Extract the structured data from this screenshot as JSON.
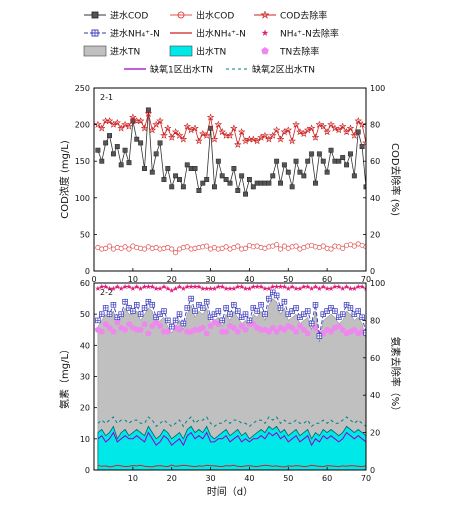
{
  "legend": [
    {
      "label": "进水COD",
      "marker": "square-line",
      "color": "#333333"
    },
    {
      "label": "出水COD",
      "marker": "circle-line",
      "color": "#e05050"
    },
    {
      "label": "COD去除率",
      "marker": "star-line",
      "color": "#cc2222"
    },
    {
      "label": "进水NH₄⁺-N",
      "marker": "boxplus-dash",
      "color": "#3333bb"
    },
    {
      "label": "出水NH₄⁺-N",
      "marker": "line",
      "color": "#cc2222"
    },
    {
      "label": "NH₄⁺-N去除率",
      "marker": "star",
      "color": "#e0207a"
    },
    {
      "label": "进水TN",
      "marker": "fill",
      "color": "#c0c0c0"
    },
    {
      "label": "出水TN",
      "marker": "fill",
      "color": "#00e8e8"
    },
    {
      "label": "TN去除率",
      "marker": "pentagon",
      "color": "#ee88ee"
    },
    {
      "label": "缺氧1区出水TN",
      "marker": "line",
      "color": "#9900cc"
    },
    {
      "label": "缺氧2区出水TN",
      "marker": "dash",
      "color": "#008080"
    }
  ],
  "colors": {
    "influent_cod": "#333333",
    "effluent_cod": "#e05050",
    "cod_removal": "#cc2222",
    "influent_nh4": "#3333bb",
    "effluent_nh4": "#cc2222",
    "nh4_removal": "#e0207a",
    "influent_tn": "#c0c0c0",
    "effluent_tn": "#00e8e8",
    "tn_removal": "#ee88ee",
    "anoxic1_tn": "#9900cc",
    "anoxic2_tn": "#008080"
  },
  "chart_data": [
    {
      "type": "line",
      "panel_label": "2-1",
      "xlabel": "",
      "ylabel": "COD浓度 (mg/L)",
      "ylabel_right": "COD去除率 (%)",
      "xlim": [
        0,
        70
      ],
      "ylim": [
        0,
        250
      ],
      "ylim_right": [
        0,
        100
      ],
      "xticks": [
        0,
        10,
        20,
        30,
        40,
        50,
        60,
        70
      ],
      "yticks": [
        0,
        50,
        100,
        150,
        200,
        250
      ],
      "yticks_right": [
        0,
        20,
        40,
        60,
        80,
        100
      ],
      "x": [
        1,
        2,
        3,
        4,
        5,
        6,
        7,
        8,
        9,
        10,
        11,
        12,
        13,
        14,
        15,
        16,
        17,
        18,
        19,
        20,
        21,
        22,
        23,
        24,
        25,
        26,
        27,
        28,
        29,
        30,
        31,
        32,
        33,
        34,
        35,
        36,
        37,
        38,
        39,
        40,
        41,
        42,
        43,
        44,
        45,
        46,
        47,
        48,
        49,
        50,
        51,
        52,
        53,
        54,
        55,
        56,
        57,
        58,
        59,
        60,
        61,
        62,
        63,
        64,
        65,
        66,
        67,
        68,
        69,
        70
      ],
      "series": [
        {
          "name": "进水COD",
          "axis": "left",
          "values": [
            165,
            150,
            175,
            185,
            160,
            170,
            145,
            165,
            148,
            205,
            180,
            175,
            140,
            220,
            135,
            160,
            175,
            125,
            140,
            115,
            130,
            125,
            115,
            145,
            140,
            140,
            110,
            120,
            125,
            195,
            115,
            150,
            130,
            125,
            120,
            140,
            110,
            130,
            105,
            125,
            115,
            120,
            120,
            120,
            120,
            130,
            150,
            120,
            145,
            135,
            115,
            150,
            135,
            130,
            150,
            160,
            120,
            160,
            150,
            135,
            165,
            150,
            150,
            155,
            145,
            160,
            130,
            190,
            170,
            115
          ]
        },
        {
          "name": "出水COD",
          "axis": "left",
          "values": [
            32,
            30,
            31,
            34,
            30,
            32,
            31,
            33,
            30,
            34,
            32,
            31,
            30,
            33,
            31,
            32,
            30,
            31,
            32,
            30,
            25,
            30,
            32,
            33,
            30,
            31,
            32,
            33,
            34,
            30,
            32,
            30,
            31,
            33,
            30,
            32,
            34,
            30,
            31,
            35,
            33,
            34,
            32,
            31,
            33,
            34,
            36,
            30,
            34,
            31,
            33,
            34,
            30,
            32,
            34,
            35,
            33,
            32,
            34,
            31,
            30,
            34,
            33,
            31,
            35,
            36,
            34,
            37,
            35,
            33
          ]
        },
        {
          "name": "COD去除率",
          "axis": "right",
          "values": [
            80,
            78,
            82,
            82,
            80,
            81,
            78,
            80,
            79,
            84,
            82,
            82,
            78,
            86,
            77,
            80,
            82,
            74,
            78,
            73,
            76,
            74,
            72,
            79,
            77,
            78,
            71,
            75,
            74,
            84,
            72,
            80,
            76,
            74,
            74,
            78,
            69,
            76,
            71,
            72,
            72,
            71,
            73,
            74,
            72,
            74,
            77,
            72,
            76,
            77,
            71,
            80,
            76,
            75,
            77,
            78,
            73,
            80,
            79,
            76,
            80,
            78,
            77,
            79,
            76,
            78,
            74,
            82,
            80,
            70
          ]
        }
      ]
    },
    {
      "type": "line",
      "panel_label": "2-2",
      "xlabel": "时间（d）",
      "ylabel": "氨素（mg/L）",
      "ylabel_right": "氨素去除率（%）",
      "xlim": [
        0,
        70
      ],
      "ylim": [
        0,
        60
      ],
      "ylim_right": [
        0,
        100
      ],
      "xticks": [
        10,
        20,
        30,
        40,
        50,
        60,
        70
      ],
      "yticks": [
        0,
        10,
        20,
        30,
        40,
        50,
        60
      ],
      "yticks_right": [
        0,
        20,
        40,
        60,
        80,
        100
      ],
      "x": [
        1,
        2,
        3,
        4,
        5,
        6,
        7,
        8,
        9,
        10,
        11,
        12,
        13,
        14,
        15,
        16,
        17,
        18,
        19,
        20,
        21,
        22,
        23,
        24,
        25,
        26,
        27,
        28,
        29,
        30,
        31,
        32,
        33,
        34,
        35,
        36,
        37,
        38,
        39,
        40,
        41,
        42,
        43,
        44,
        45,
        46,
        47,
        48,
        49,
        50,
        51,
        52,
        53,
        54,
        55,
        56,
        57,
        58,
        59,
        60,
        61,
        62,
        63,
        64,
        65,
        66,
        67,
        68,
        69,
        70
      ],
      "series": [
        {
          "name": "进水NH₄⁺-N",
          "axis": "left",
          "values": [
            48,
            50,
            52,
            50,
            53,
            49,
            50,
            54,
            52,
            51,
            53,
            50,
            52,
            54,
            53,
            49,
            50,
            51,
            48,
            46,
            48,
            50,
            47,
            52,
            55,
            51,
            53,
            52,
            54,
            49,
            50,
            51,
            48,
            52,
            50,
            53,
            51,
            49,
            50,
            48,
            52,
            51,
            53,
            50,
            55,
            57,
            56,
            52,
            54,
            50,
            51,
            52,
            49,
            50,
            51,
            47,
            53,
            43,
            50,
            51,
            52,
            51,
            49,
            50,
            53,
            52,
            50,
            51,
            49,
            44
          ]
        },
        {
          "name": "出水NH₄⁺-N",
          "axis": "left",
          "values": [
            1.5,
            1.2,
            1.3,
            1.0,
            1.2,
            1.5,
            1.3,
            1.1,
            1.2,
            1.4,
            1.3,
            1.5,
            1.2,
            1.1,
            1.0,
            1.3,
            1.4,
            1.2,
            1.1,
            1.6,
            1.2,
            1.3,
            1.5,
            1.4,
            1.2,
            1.1,
            1.3,
            1.2,
            1.5,
            1.4,
            1.3,
            1.2,
            1.1,
            1.4,
            1.3,
            1.5,
            1.2,
            1.1,
            1.3,
            1.4,
            1.2,
            1.1,
            1.3,
            1.5,
            1.4,
            1.2,
            1.3,
            1.1,
            1.0,
            1.3,
            1.2,
            1.4,
            1.3,
            1.1,
            1.2,
            1.5,
            1.3,
            1.2,
            1.1,
            1.4,
            1.3,
            1.2,
            1.1,
            1.3,
            1.2,
            1.4,
            1.3,
            1.2,
            1.1,
            1.3
          ]
        },
        {
          "name": "NH₄⁺-N去除率",
          "axis": "right",
          "values": [
            97,
            98,
            98,
            97,
            97,
            98,
            97,
            98,
            98,
            97,
            98,
            97,
            98,
            98,
            98,
            97,
            97,
            98,
            97,
            96,
            97,
            98,
            97,
            98,
            98,
            98,
            98,
            97,
            97,
            97,
            97,
            98,
            98,
            97,
            97,
            97,
            98,
            98,
            97,
            97,
            98,
            98,
            98,
            97,
            97,
            98,
            98,
            98,
            98,
            97,
            98,
            97,
            97,
            98,
            98,
            97,
            98,
            97,
            98,
            97,
            97,
            98,
            98,
            97,
            98,
            97,
            97,
            98,
            98,
            97
          ]
        },
        {
          "name": "进水TN",
          "axis": "left",
          "values": [
            46,
            48,
            50,
            49,
            51,
            47,
            49,
            52,
            50,
            50,
            51,
            48,
            50,
            52,
            51,
            47,
            48,
            49,
            46,
            44,
            46,
            48,
            45,
            50,
            53,
            49,
            51,
            50,
            52,
            47,
            48,
            49,
            46,
            50,
            48,
            51,
            49,
            47,
            48,
            46,
            50,
            49,
            51,
            48,
            53,
            55,
            54,
            50,
            52,
            48,
            49,
            50,
            47,
            48,
            49,
            45,
            51,
            41,
            48,
            49,
            50,
            49,
            47,
            48,
            51,
            50,
            48,
            49,
            47,
            42
          ]
        },
        {
          "name": "出水TN",
          "axis": "left",
          "values": [
            12,
            13,
            11,
            12,
            14,
            10,
            12,
            13,
            11,
            12,
            13,
            12,
            11,
            14,
            12,
            10,
            11,
            13,
            12,
            10,
            11,
            12,
            10,
            13,
            14,
            12,
            13,
            12,
            14,
            11,
            10,
            11,
            12,
            13,
            11,
            12,
            13,
            11,
            12,
            10,
            11,
            12,
            13,
            12,
            14,
            13,
            14,
            12,
            13,
            11,
            12,
            13,
            11,
            12,
            13,
            10,
            12,
            11,
            13,
            12,
            13,
            12,
            11,
            12,
            14,
            13,
            12,
            13,
            12,
            11
          ]
        },
        {
          "name": "TN去除率",
          "axis": "right",
          "values": [
            75,
            74,
            78,
            76,
            74,
            79,
            76,
            75,
            78,
            76,
            75,
            75,
            78,
            73,
            77,
            79,
            77,
            74,
            74,
            77,
            76,
            75,
            78,
            74,
            74,
            75,
            75,
            76,
            73,
            77,
            79,
            78,
            74,
            74,
            77,
            76,
            74,
            77,
            75,
            78,
            78,
            76,
            75,
            75,
            74,
            76,
            74,
            76,
            75,
            77,
            76,
            74,
            77,
            75,
            73,
            78,
            76,
            73,
            73,
            75,
            74,
            76,
            77,
            75,
            73,
            74,
            75,
            73,
            74,
            74
          ]
        },
        {
          "name": "缺氧1区出水TN",
          "axis": "left",
          "values": [
            10,
            11,
            9,
            10,
            12,
            9,
            10,
            11,
            10,
            10,
            11,
            10,
            9,
            12,
            10,
            8,
            9,
            11,
            10,
            8,
            9,
            10,
            8,
            11,
            12,
            10,
            11,
            10,
            12,
            9,
            9,
            10,
            10,
            11,
            9,
            10,
            11,
            9,
            10,
            9,
            10,
            10,
            11,
            10,
            12,
            11,
            12,
            10,
            11,
            9,
            10,
            11,
            9,
            10,
            11,
            8,
            10,
            9,
            11,
            10,
            11,
            10,
            9,
            10,
            12,
            11,
            10,
            11,
            10,
            9
          ]
        },
        {
          "name": "缺氧2区出水TN",
          "axis": "left",
          "values": [
            15,
            16,
            15,
            16,
            17,
            15,
            16,
            16,
            15,
            16,
            16,
            15,
            15,
            17,
            16,
            14,
            15,
            16,
            15,
            14,
            15,
            16,
            14,
            16,
            17,
            15,
            16,
            16,
            17,
            15,
            14,
            15,
            15,
            16,
            15,
            16,
            16,
            15,
            15,
            14,
            15,
            16,
            16,
            15,
            17,
            16,
            17,
            15,
            16,
            15,
            15,
            16,
            15,
            15,
            16,
            14,
            15,
            15,
            16,
            15,
            16,
            15,
            15,
            16,
            17,
            16,
            15,
            16,
            15,
            14
          ]
        }
      ]
    }
  ]
}
